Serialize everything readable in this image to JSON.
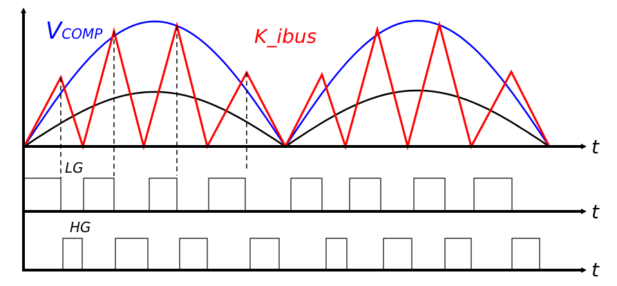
{
  "labels": {
    "vcomp_main": "V",
    "vcomp_sub": "COMP",
    "kibus": "K_ibus",
    "lg": "LG",
    "hg": "HG",
    "t_axis_1": "t",
    "t_axis_2": "t",
    "t_axis_3": "t"
  },
  "colors": {
    "vcomp": "#0000ff",
    "kibus": "#ff0000",
    "reference": "#000000",
    "axes": "#000000"
  }
}
